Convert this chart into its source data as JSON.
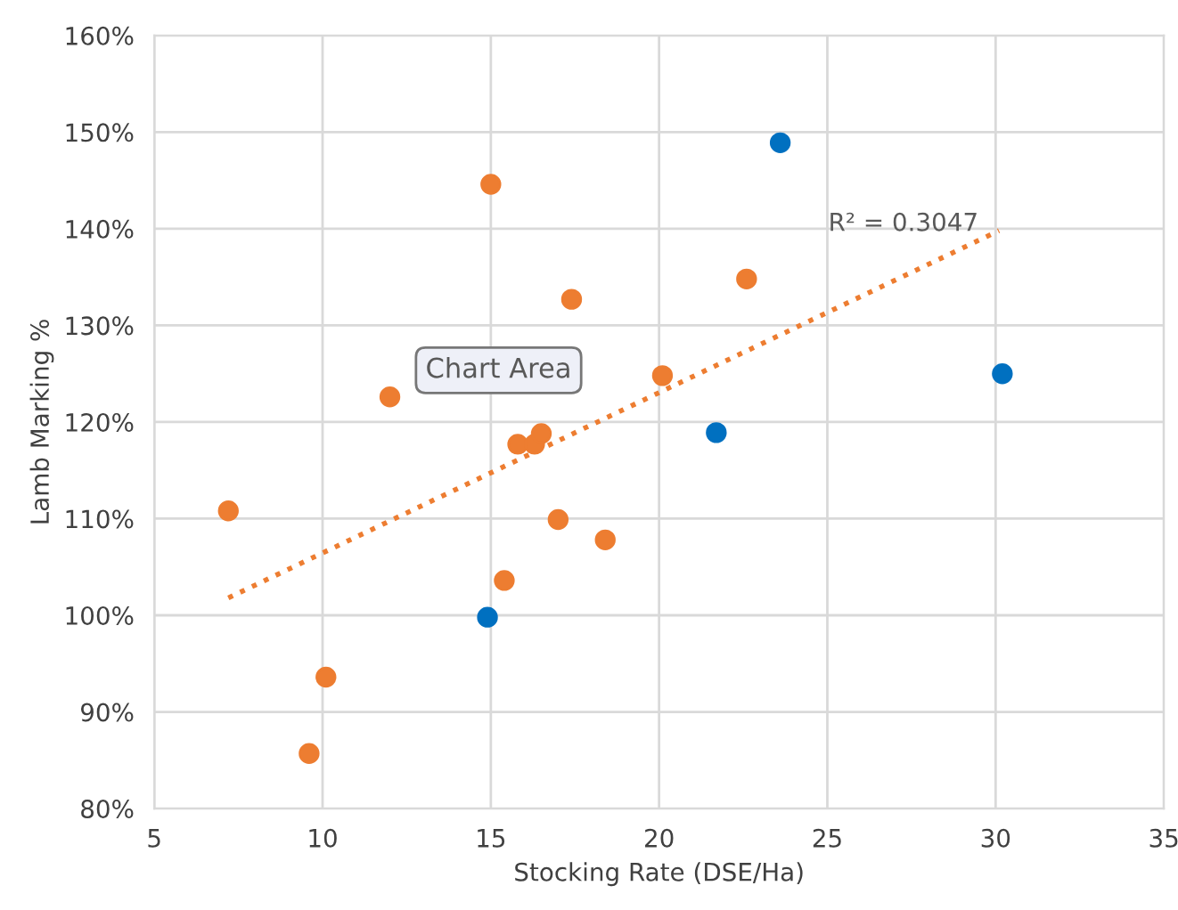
{
  "chart_data": {
    "type": "scatter",
    "xlabel": "Stocking Rate (DSE/Ha)",
    "ylabel": "Lamb Marking %",
    "xlim": [
      5,
      35
    ],
    "xticks": [
      5,
      10,
      15,
      20,
      25,
      30,
      35
    ],
    "ylim": [
      80,
      160
    ],
    "yticks": [
      {
        "value": 80,
        "label": "80%"
      },
      {
        "value": 90,
        "label": "90%"
      },
      {
        "value": 100,
        "label": "100%"
      },
      {
        "value": 110,
        "label": "110%"
      },
      {
        "value": 120,
        "label": "120%"
      },
      {
        "value": 130,
        "label": "130%"
      },
      {
        "value": 140,
        "label": "140%"
      },
      {
        "value": 150,
        "label": "150%"
      },
      {
        "value": 160,
        "label": "160%"
      }
    ],
    "grid": true,
    "legend": false,
    "marker": "circle",
    "series": [
      {
        "color": "#ed7d31",
        "x": [
          15.0,
          17.4,
          12.0,
          22.6,
          20.1,
          15.8,
          16.3,
          16.5,
          7.2,
          17.0,
          18.4,
          15.4,
          10.1,
          9.6
        ],
        "values": [
          144.6,
          132.7,
          122.6,
          134.8,
          124.8,
          117.7,
          117.7,
          118.8,
          110.8,
          109.9,
          107.8,
          103.6,
          93.6,
          85.7
        ]
      },
      {
        "color": "#0070c0",
        "x": [
          14.9,
          23.6,
          30.2,
          21.7
        ],
        "values": [
          99.8,
          148.9,
          125.0,
          118.9
        ]
      },
      {
        "type": "line",
        "color": "#ed7d31",
        "line_style": "dotted",
        "marker": "none",
        "x": [
          7.2,
          30.1
        ],
        "values": [
          101.8,
          139.8
        ]
      }
    ],
    "annotations": [
      "R² = 0.3047",
      "Chart Area"
    ]
  }
}
